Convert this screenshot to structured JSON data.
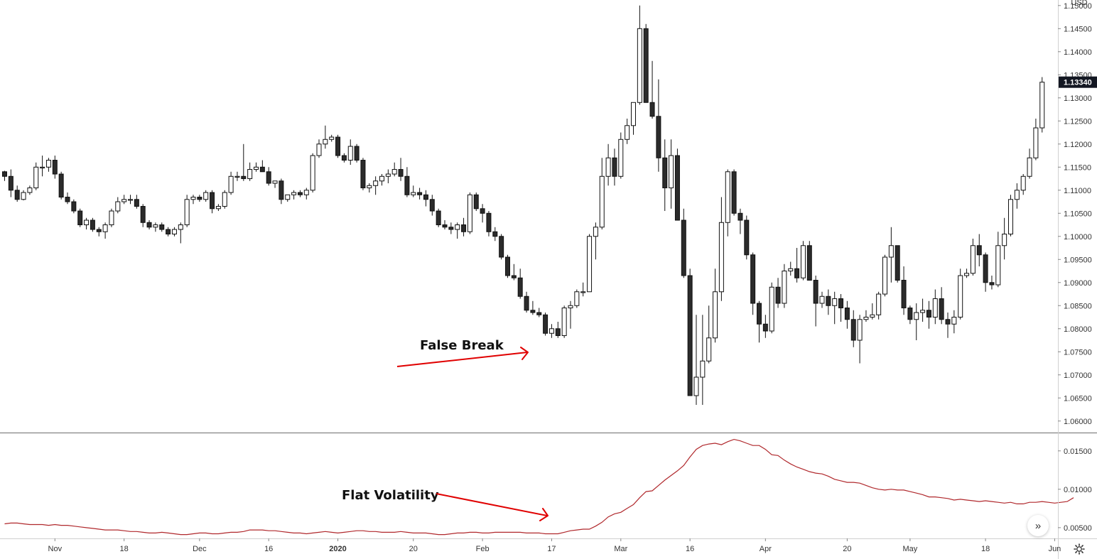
{
  "chart_data": {
    "type": "candlestick",
    "currency_label": "USD",
    "current_price_label": "1.13340",
    "price_axis": {
      "range": [
        1.0575,
        1.1512
      ],
      "ticks": [
        "1.06000",
        "1.06500",
        "1.07000",
        "1.07500",
        "1.08000",
        "1.08500",
        "1.09000",
        "1.09500",
        "1.10000",
        "1.10500",
        "1.11000",
        "1.11500",
        "1.12000",
        "1.12500",
        "1.13000",
        "1.13500",
        "1.14000",
        "1.14500",
        "1.15000"
      ]
    },
    "volatility_axis": {
      "range": [
        0.0036,
        0.0172
      ],
      "ticks": [
        "0.00500",
        "0.01000",
        "0.01500"
      ]
    },
    "time_axis": [
      {
        "label": "Nov",
        "index": 8,
        "bold": false
      },
      {
        "label": "18",
        "index": 19,
        "bold": false
      },
      {
        "label": "Dec",
        "index": 31,
        "bold": false
      },
      {
        "label": "16",
        "index": 42,
        "bold": false
      },
      {
        "label": "2020",
        "index": 53,
        "bold": true
      },
      {
        "label": "20",
        "index": 65,
        "bold": false
      },
      {
        "label": "Feb",
        "index": 76,
        "bold": false
      },
      {
        "label": "17",
        "index": 87,
        "bold": false
      },
      {
        "label": "Mar",
        "index": 98,
        "bold": false
      },
      {
        "label": "16",
        "index": 109,
        "bold": false
      },
      {
        "label": "Apr",
        "index": 121,
        "bold": false
      },
      {
        "label": "20",
        "index": 134,
        "bold": false
      },
      {
        "label": "May",
        "index": 144,
        "bold": false
      },
      {
        "label": "18",
        "index": 156,
        "bold": false
      },
      {
        "label": "Jun",
        "index": 167,
        "bold": false
      }
    ],
    "candles_ohlc": [
      [
        1.114,
        1.1142,
        1.112,
        1.113
      ],
      [
        1.113,
        1.1145,
        1.1085,
        1.11
      ],
      [
        1.11,
        1.111,
        1.1075,
        1.108
      ],
      [
        1.108,
        1.11,
        1.1078,
        1.1095
      ],
      [
        1.1095,
        1.111,
        1.109,
        1.1105
      ],
      [
        1.1105,
        1.116,
        1.11,
        1.115
      ],
      [
        1.115,
        1.1175,
        1.113,
        1.115
      ],
      [
        1.115,
        1.117,
        1.114,
        1.1165
      ],
      [
        1.1165,
        1.1175,
        1.1125,
        1.1135
      ],
      [
        1.1135,
        1.114,
        1.108,
        1.1085
      ],
      [
        1.1085,
        1.1095,
        1.107,
        1.1075
      ],
      [
        1.1075,
        1.108,
        1.105,
        1.1055
      ],
      [
        1.1055,
        1.106,
        1.102,
        1.1025
      ],
      [
        1.1025,
        1.104,
        1.1015,
        1.1035
      ],
      [
        1.1035,
        1.104,
        1.101,
        1.1015
      ],
      [
        1.1015,
        1.102,
        1.1,
        1.101
      ],
      [
        1.101,
        1.103,
        1.0995,
        1.1025
      ],
      [
        1.1025,
        1.106,
        1.102,
        1.1055
      ],
      [
        1.1055,
        1.1085,
        1.105,
        1.1075
      ],
      [
        1.1075,
        1.109,
        1.107,
        1.108
      ],
      [
        1.108,
        1.109,
        1.107,
        1.108
      ],
      [
        1.108,
        1.109,
        1.106,
        1.1065
      ],
      [
        1.1065,
        1.107,
        1.102,
        1.103
      ],
      [
        1.103,
        1.1035,
        1.1015,
        1.102
      ],
      [
        1.102,
        1.103,
        1.101,
        1.1025
      ],
      [
        1.1025,
        1.103,
        1.101,
        1.1015
      ],
      [
        1.1015,
        1.102,
        1.1,
        1.1005
      ],
      [
        1.1005,
        1.102,
        1.1,
        1.1015
      ],
      [
        1.1015,
        1.103,
        1.0985,
        1.1025
      ],
      [
        1.1025,
        1.109,
        1.102,
        1.108
      ],
      [
        1.108,
        1.109,
        1.107,
        1.1085
      ],
      [
        1.1085,
        1.109,
        1.1075,
        1.108
      ],
      [
        1.108,
        1.11,
        1.1075,
        1.1095
      ],
      [
        1.1095,
        1.11,
        1.105,
        1.106
      ],
      [
        1.106,
        1.107,
        1.1055,
        1.1065
      ],
      [
        1.1065,
        1.11,
        1.106,
        1.1095
      ],
      [
        1.1095,
        1.114,
        1.109,
        1.113
      ],
      [
        1.113,
        1.114,
        1.112,
        1.113
      ],
      [
        1.113,
        1.12,
        1.112,
        1.1125
      ],
      [
        1.1125,
        1.116,
        1.112,
        1.1145
      ],
      [
        1.1145,
        1.116,
        1.114,
        1.115
      ],
      [
        1.115,
        1.1165,
        1.1145,
        1.114
      ],
      [
        1.114,
        1.115,
        1.111,
        1.1115
      ],
      [
        1.1115,
        1.112,
        1.1105,
        1.112
      ],
      [
        1.112,
        1.1125,
        1.107,
        1.108
      ],
      [
        1.108,
        1.109,
        1.1075,
        1.109
      ],
      [
        1.109,
        1.11,
        1.108,
        1.1095
      ],
      [
        1.1095,
        1.11,
        1.1085,
        1.109
      ],
      [
        1.109,
        1.1105,
        1.108,
        1.11
      ],
      [
        1.11,
        1.118,
        1.1095,
        1.1175
      ],
      [
        1.1175,
        1.121,
        1.117,
        1.12
      ],
      [
        1.12,
        1.124,
        1.119,
        1.121
      ],
      [
        1.121,
        1.122,
        1.1205,
        1.1215
      ],
      [
        1.1215,
        1.122,
        1.117,
        1.1175
      ],
      [
        1.1175,
        1.118,
        1.116,
        1.1165
      ],
      [
        1.1165,
        1.121,
        1.1155,
        1.1195
      ],
      [
        1.1195,
        1.12,
        1.116,
        1.1165
      ],
      [
        1.1165,
        1.117,
        1.11,
        1.1105
      ],
      [
        1.1105,
        1.1115,
        1.1095,
        1.111
      ],
      [
        1.111,
        1.113,
        1.109,
        1.112
      ],
      [
        1.112,
        1.1135,
        1.111,
        1.113
      ],
      [
        1.113,
        1.1145,
        1.1115,
        1.1135
      ],
      [
        1.1135,
        1.116,
        1.113,
        1.1145
      ],
      [
        1.1145,
        1.117,
        1.112,
        1.113
      ],
      [
        1.113,
        1.115,
        1.1085,
        1.109
      ],
      [
        1.109,
        1.111,
        1.1085,
        1.1095
      ],
      [
        1.1095,
        1.1105,
        1.108,
        1.109
      ],
      [
        1.109,
        1.11,
        1.1065,
        1.108
      ],
      [
        1.108,
        1.109,
        1.1045,
        1.1055
      ],
      [
        1.1055,
        1.106,
        1.102,
        1.1025
      ],
      [
        1.1025,
        1.1035,
        1.1015,
        1.102
      ],
      [
        1.102,
        1.103,
        1.1005,
        1.1015
      ],
      [
        1.1015,
        1.103,
        1.0995,
        1.1025
      ],
      [
        1.1025,
        1.104,
        1.1,
        1.101
      ],
      [
        1.101,
        1.1095,
        1.1005,
        1.109
      ],
      [
        1.109,
        1.1095,
        1.1055,
        1.106
      ],
      [
        1.106,
        1.107,
        1.103,
        1.105
      ],
      [
        1.105,
        1.1055,
        1.1,
        1.101
      ],
      [
        1.101,
        1.102,
        1.099,
        1.1
      ],
      [
        1.1,
        1.1005,
        1.095,
        1.0955
      ],
      [
        1.0955,
        1.096,
        1.091,
        1.0915
      ],
      [
        1.0915,
        1.094,
        1.0905,
        1.091
      ],
      [
        1.091,
        1.093,
        1.0865,
        1.087
      ],
      [
        1.087,
        1.088,
        1.0835,
        1.084
      ],
      [
        1.084,
        1.086,
        1.083,
        1.0835
      ],
      [
        1.0835,
        1.0845,
        1.0825,
        1.083
      ],
      [
        1.083,
        1.0835,
        1.0785,
        1.079
      ],
      [
        1.079,
        1.081,
        1.078,
        1.08
      ],
      [
        1.08,
        1.0815,
        1.078,
        1.0785
      ],
      [
        1.0785,
        1.085,
        1.078,
        1.0845
      ],
      [
        1.0845,
        1.086,
        1.08,
        1.085
      ],
      [
        1.085,
        1.0885,
        1.0845,
        1.088
      ],
      [
        1.088,
        1.09,
        1.087,
        1.088
      ],
      [
        1.088,
        1.1005,
        1.088,
        1.1
      ],
      [
        1.1,
        1.103,
        1.095,
        1.102
      ],
      [
        1.102,
        1.117,
        1.1015,
        1.113
      ],
      [
        1.113,
        1.12,
        1.111,
        1.117
      ],
      [
        1.117,
        1.119,
        1.111,
        1.113
      ],
      [
        1.113,
        1.1225,
        1.1125,
        1.121
      ],
      [
        1.121,
        1.1255,
        1.12,
        1.124
      ],
      [
        1.124,
        1.127,
        1.122,
        1.129
      ],
      [
        1.129,
        1.15,
        1.1285,
        1.145
      ],
      [
        1.145,
        1.146,
        1.129,
        1.129
      ],
      [
        1.129,
        1.138,
        1.1255,
        1.126
      ],
      [
        1.126,
        1.134,
        1.114,
        1.117
      ],
      [
        1.117,
        1.121,
        1.1055,
        1.1105
      ],
      [
        1.1105,
        1.121,
        1.106,
        1.1175
      ],
      [
        1.1175,
        1.119,
        1.1035,
        1.1035
      ],
      [
        1.1035,
        1.106,
        1.091,
        1.0915
      ],
      [
        1.0915,
        1.093,
        1.0765,
        1.0655
      ],
      [
        1.0655,
        1.083,
        1.0635,
        1.0695
      ],
      [
        1.0695,
        1.083,
        1.0635,
        1.073
      ],
      [
        1.073,
        1.085,
        1.0725,
        1.078
      ],
      [
        1.078,
        1.093,
        1.077,
        1.088
      ],
      [
        1.088,
        1.1085,
        1.086,
        1.103
      ],
      [
        1.103,
        1.1145,
        1.1,
        1.114
      ],
      [
        1.114,
        1.1145,
        1.1045,
        1.105
      ],
      [
        1.105,
        1.106,
        1.1005,
        1.1035
      ],
      [
        1.1035,
        1.1045,
        1.095,
        1.096
      ],
      [
        1.096,
        1.0965,
        1.083,
        1.0855
      ],
      [
        1.0855,
        1.086,
        1.077,
        1.081
      ],
      [
        1.081,
        1.083,
        1.078,
        1.0795
      ],
      [
        1.0795,
        1.09,
        1.079,
        1.089
      ],
      [
        1.089,
        1.091,
        1.0845,
        1.0855
      ],
      [
        1.0855,
        1.094,
        1.0845,
        1.0925
      ],
      [
        1.0925,
        1.0945,
        1.0915,
        1.093
      ],
      [
        1.093,
        1.0975,
        1.09,
        1.091
      ],
      [
        1.091,
        1.099,
        1.0905,
        1.098
      ],
      [
        1.098,
        1.099,
        1.0905,
        1.0905
      ],
      [
        1.0905,
        1.0915,
        1.0805,
        1.0855
      ],
      [
        1.0855,
        1.088,
        1.0845,
        1.087
      ],
      [
        1.087,
        1.0885,
        1.083,
        1.085
      ],
      [
        1.085,
        1.088,
        1.081,
        1.0865
      ],
      [
        1.0865,
        1.0875,
        1.0815,
        1.0845
      ],
      [
        1.0845,
        1.086,
        1.08,
        1.082
      ],
      [
        1.082,
        1.084,
        1.076,
        1.0775
      ],
      [
        1.0775,
        1.083,
        1.0725,
        1.082
      ],
      [
        1.082,
        1.084,
        1.0815,
        1.0825
      ],
      [
        1.0825,
        1.0855,
        1.082,
        1.083
      ],
      [
        1.083,
        1.088,
        1.082,
        1.0875
      ],
      [
        1.0875,
        1.096,
        1.087,
        1.0955
      ],
      [
        1.0955,
        1.102,
        1.09,
        1.098
      ],
      [
        1.098,
        1.098,
        1.09,
        1.0905
      ],
      [
        1.0905,
        1.0935,
        1.083,
        1.0845
      ],
      [
        1.0845,
        1.085,
        1.081,
        1.082
      ],
      [
        1.082,
        1.0855,
        1.0775,
        1.0835
      ],
      [
        1.0835,
        1.0865,
        1.0815,
        1.084
      ],
      [
        1.084,
        1.086,
        1.08,
        1.0825
      ],
      [
        1.0825,
        1.0885,
        1.081,
        1.0865
      ],
      [
        1.0865,
        1.089,
        1.081,
        1.082
      ],
      [
        1.082,
        1.0835,
        1.078,
        1.081
      ],
      [
        1.081,
        1.084,
        1.079,
        1.0825
      ],
      [
        1.0825,
        1.093,
        1.082,
        1.0915
      ],
      [
        1.0915,
        1.093,
        1.091,
        1.092
      ],
      [
        1.092,
        1.0995,
        1.0915,
        1.098
      ],
      [
        1.098,
        1.1005,
        1.0935,
        1.096
      ],
      [
        1.096,
        1.0965,
        1.088,
        1.09
      ],
      [
        1.09,
        1.0915,
        1.0885,
        1.0895
      ],
      [
        1.0895,
        1.101,
        1.089,
        1.098
      ],
      [
        1.098,
        1.104,
        1.095,
        1.1005
      ],
      [
        1.1005,
        1.109,
        1.1,
        1.108
      ],
      [
        1.108,
        1.1115,
        1.106,
        1.11
      ],
      [
        1.11,
        1.1135,
        1.109,
        1.113
      ],
      [
        1.113,
        1.119,
        1.1125,
        1.117
      ],
      [
        1.117,
        1.1255,
        1.1165,
        1.1235
      ],
      [
        1.1235,
        1.1345,
        1.1225,
        1.1334
      ]
    ],
    "volatility_series": [
      0.0055,
      0.0056,
      0.0056,
      0.0055,
      0.0054,
      0.0054,
      0.0054,
      0.0053,
      0.0054,
      0.0053,
      0.0053,
      0.0052,
      0.0051,
      0.005,
      0.0049,
      0.0048,
      0.0047,
      0.0047,
      0.0047,
      0.0046,
      0.0045,
      0.0045,
      0.0044,
      0.0043,
      0.0043,
      0.0044,
      0.0043,
      0.0042,
      0.0041,
      0.0041,
      0.0042,
      0.0043,
      0.0043,
      0.0042,
      0.0042,
      0.0043,
      0.0044,
      0.0044,
      0.0045,
      0.0047,
      0.0047,
      0.0047,
      0.0046,
      0.0046,
      0.0045,
      0.0044,
      0.0043,
      0.0043,
      0.0042,
      0.0043,
      0.0044,
      0.0045,
      0.0044,
      0.0043,
      0.0044,
      0.0045,
      0.0046,
      0.0046,
      0.0045,
      0.0045,
      0.0044,
      0.0044,
      0.0044,
      0.0045,
      0.0044,
      0.0043,
      0.0043,
      0.0043,
      0.0042,
      0.0041,
      0.0041,
      0.0042,
      0.0043,
      0.0043,
      0.0044,
      0.0044,
      0.0043,
      0.0043,
      0.0044,
      0.0044,
      0.0044,
      0.0044,
      0.0044,
      0.0043,
      0.0043,
      0.0043,
      0.0042,
      0.0042,
      0.0042,
      0.0044,
      0.0046,
      0.0047,
      0.0048,
      0.0048,
      0.0052,
      0.0057,
      0.0064,
      0.0068,
      0.007,
      0.0075,
      0.008,
      0.0089,
      0.0097,
      0.0098,
      0.0105,
      0.0112,
      0.0118,
      0.0124,
      0.0131,
      0.0142,
      0.0152,
      0.0157,
      0.0159,
      0.016,
      0.0158,
      0.0162,
      0.0165,
      0.0163,
      0.016,
      0.0157,
      0.0157,
      0.0152,
      0.0145,
      0.0144,
      0.0138,
      0.0133,
      0.0129,
      0.0126,
      0.0123,
      0.0121,
      0.012,
      0.0117,
      0.0113,
      0.0111,
      0.0109,
      0.0109,
      0.0108,
      0.0105,
      0.0102,
      0.01,
      0.0099,
      0.01,
      0.0099,
      0.0099,
      0.0097,
      0.0095,
      0.0093,
      0.009,
      0.009,
      0.0089,
      0.0088,
      0.0086,
      0.0087,
      0.0086,
      0.0085,
      0.0084,
      0.0085,
      0.0084,
      0.0083,
      0.0082,
      0.0083,
      0.0081,
      0.0081,
      0.0083,
      0.0083,
      0.0084,
      0.0083,
      0.0082,
      0.0083,
      0.0084,
      0.0089
    ],
    "annotations": [
      {
        "text": "False Break",
        "arrow_target": "candle 86"
      },
      {
        "text": "Flat Volatility",
        "arrow_target": "volatility 88"
      }
    ],
    "colors": {
      "up": "#ffffff",
      "down": "#2b2b2b",
      "outline": "#111111",
      "volatility_line": "#b0282c",
      "arrow": "#e00000",
      "axis_line": "#d0d0d0",
      "separator": "#6e6e6e",
      "price_tag_bg": "#131722"
    }
  },
  "scroll_button_label": "»"
}
